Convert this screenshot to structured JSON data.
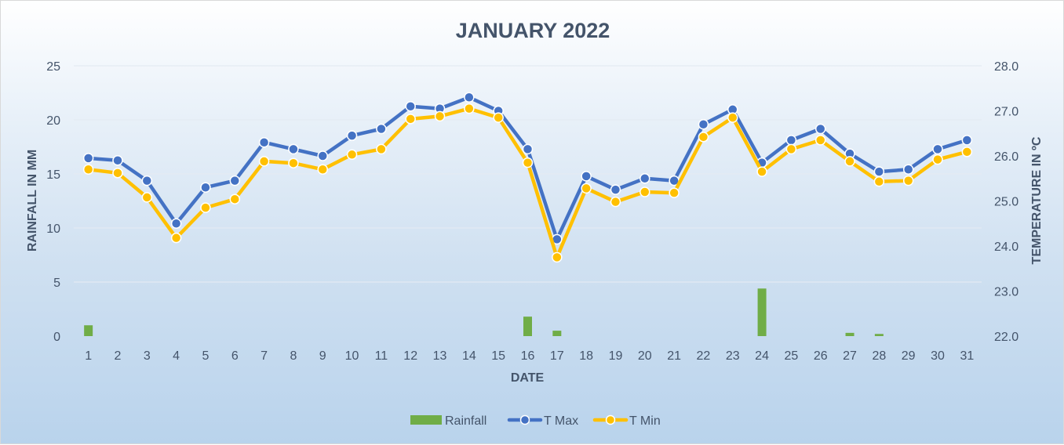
{
  "chart_data": {
    "type": "bar",
    "title": "JANUARY 2022",
    "xlabel": "DATE",
    "ylabel": "RAINFALL IN MM",
    "y2label": "TEMPERATURE IN ºC",
    "categories": [
      "1",
      "2",
      "3",
      "4",
      "5",
      "6",
      "7",
      "8",
      "9",
      "10",
      "11",
      "12",
      "13",
      "14",
      "15",
      "16",
      "17",
      "18",
      "19",
      "20",
      "21",
      "22",
      "23",
      "24",
      "25",
      "26",
      "27",
      "28",
      "29",
      "30",
      "31"
    ],
    "ylim": [
      0,
      25
    ],
    "yticks": [
      "0",
      "5",
      "10",
      "15",
      "20",
      "25"
    ],
    "y2lim": [
      22.0,
      28.0
    ],
    "y2ticks": [
      "22.0",
      "23.0",
      "24.0",
      "25.0",
      "26.0",
      "27.0",
      "28.0"
    ],
    "grid": true,
    "legend_position": "bottom",
    "series": [
      {
        "name": "Rainfall",
        "type": "bar",
        "axis": "left",
        "color": "#70ad47",
        "values": [
          1.0,
          0,
          0,
          0,
          0,
          0,
          0,
          0,
          0,
          0,
          0,
          0,
          0,
          0,
          0,
          1.8,
          0.5,
          0,
          0,
          0,
          0,
          0,
          0,
          4.4,
          0,
          0,
          0.3,
          0.2,
          0,
          0,
          0
        ]
      },
      {
        "name": "T Max",
        "type": "line",
        "axis": "right",
        "color": "#4472c4",
        "values": [
          25.95,
          25.9,
          25.45,
          24.5,
          25.3,
          25.45,
          26.3,
          26.15,
          26.0,
          26.45,
          26.6,
          27.1,
          27.05,
          27.3,
          27.0,
          26.15,
          24.15,
          25.55,
          25.25,
          25.5,
          25.45,
          26.7,
          27.03,
          25.85,
          26.35,
          26.6,
          26.05,
          25.65,
          25.7,
          26.15,
          26.35
        ]
      },
      {
        "name": "T Min",
        "type": "line",
        "axis": "right",
        "color": "#ffc000",
        "values": [
          25.7,
          25.62,
          25.08,
          24.18,
          24.85,
          25.04,
          25.88,
          25.84,
          25.7,
          26.03,
          26.15,
          26.82,
          26.88,
          27.05,
          26.85,
          25.85,
          23.75,
          25.28,
          24.98,
          25.2,
          25.18,
          26.42,
          26.85,
          25.65,
          26.15,
          26.35,
          25.88,
          25.43,
          25.45,
          25.92,
          26.09
        ]
      }
    ]
  }
}
